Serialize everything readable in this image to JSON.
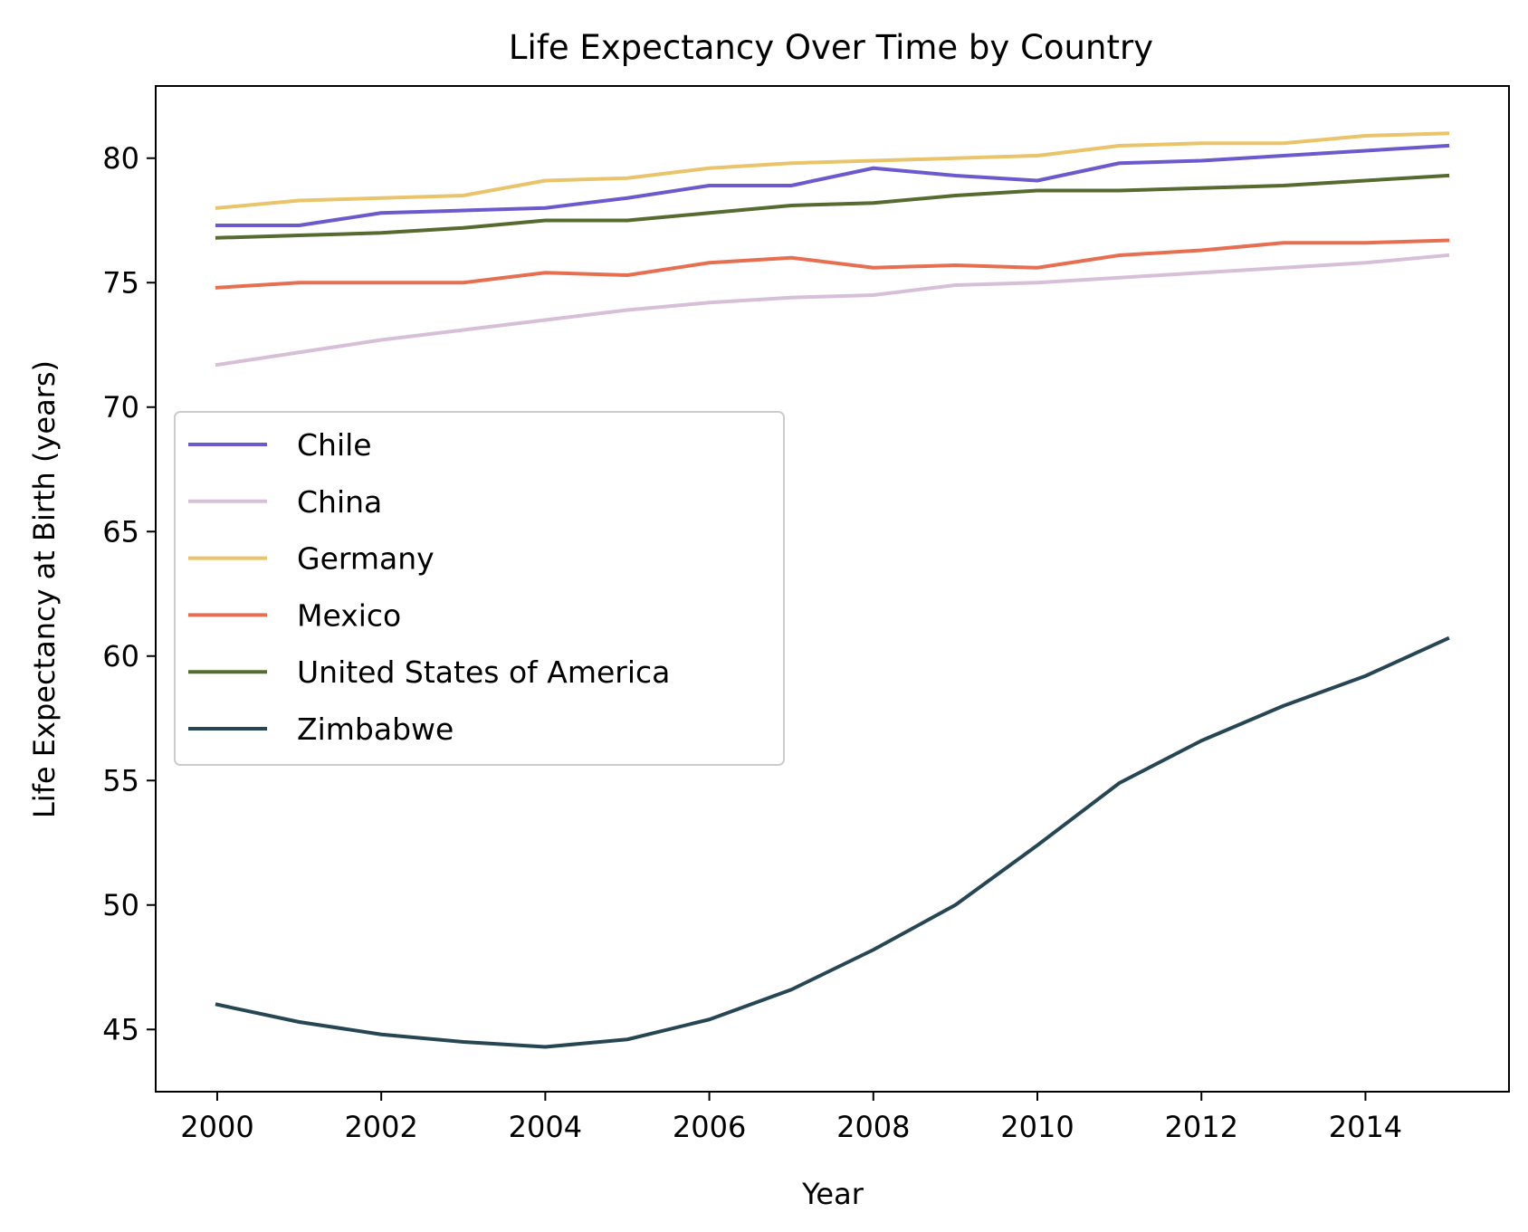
{
  "chart_data": {
    "type": "line",
    "title": "Life Expectancy Over Time by Country",
    "xlabel": "Year",
    "ylabel": "Life Expectancy at Birth (years)",
    "xlim": [
      1999.25,
      2015.75
    ],
    "ylim": [
      42.5,
      82.9
    ],
    "xticks": [
      2000,
      2002,
      2004,
      2006,
      2008,
      2010,
      2012,
      2014
    ],
    "yticks": [
      45,
      50,
      55,
      60,
      65,
      70,
      75,
      80
    ],
    "grid": false,
    "legend_position": "center-left",
    "x": [
      2000,
      2001,
      2002,
      2003,
      2004,
      2005,
      2006,
      2007,
      2008,
      2009,
      2010,
      2011,
      2012,
      2013,
      2014,
      2015
    ],
    "series": [
      {
        "name": "Chile",
        "color": "#6a5acd",
        "values": [
          77.3,
          77.3,
          77.8,
          77.9,
          78.0,
          78.4,
          78.9,
          78.9,
          79.6,
          79.3,
          79.1,
          79.8,
          79.9,
          80.1,
          80.3,
          80.5
        ]
      },
      {
        "name": "China",
        "color": "#d8bfd8",
        "values": [
          71.7,
          72.2,
          72.7,
          73.1,
          73.5,
          73.9,
          74.2,
          74.4,
          74.5,
          74.9,
          75.0,
          75.2,
          75.4,
          75.6,
          75.8,
          76.1
        ]
      },
      {
        "name": "Germany",
        "color": "#e9c46a",
        "values": [
          78.0,
          78.3,
          78.4,
          78.5,
          79.1,
          79.2,
          79.6,
          79.8,
          79.9,
          80.0,
          80.1,
          80.5,
          80.6,
          80.6,
          80.9,
          81.0
        ]
      },
      {
        "name": "Mexico",
        "color": "#e76f51",
        "values": [
          74.8,
          75.0,
          75.0,
          75.0,
          75.4,
          75.3,
          75.8,
          76.0,
          75.6,
          75.7,
          75.6,
          76.1,
          76.3,
          76.6,
          76.6,
          76.7
        ]
      },
      {
        "name": "United States of America",
        "color": "#556b2f",
        "values": [
          76.8,
          76.9,
          77.0,
          77.2,
          77.5,
          77.5,
          77.8,
          78.1,
          78.2,
          78.5,
          78.7,
          78.7,
          78.8,
          78.9,
          79.1,
          79.3
        ]
      },
      {
        "name": "Zimbabwe",
        "color": "#264653",
        "values": [
          46.0,
          45.3,
          44.8,
          44.5,
          44.3,
          44.6,
          45.4,
          46.6,
          48.2,
          50.0,
          52.4,
          54.9,
          56.6,
          58.0,
          59.2,
          60.7
        ]
      }
    ]
  }
}
